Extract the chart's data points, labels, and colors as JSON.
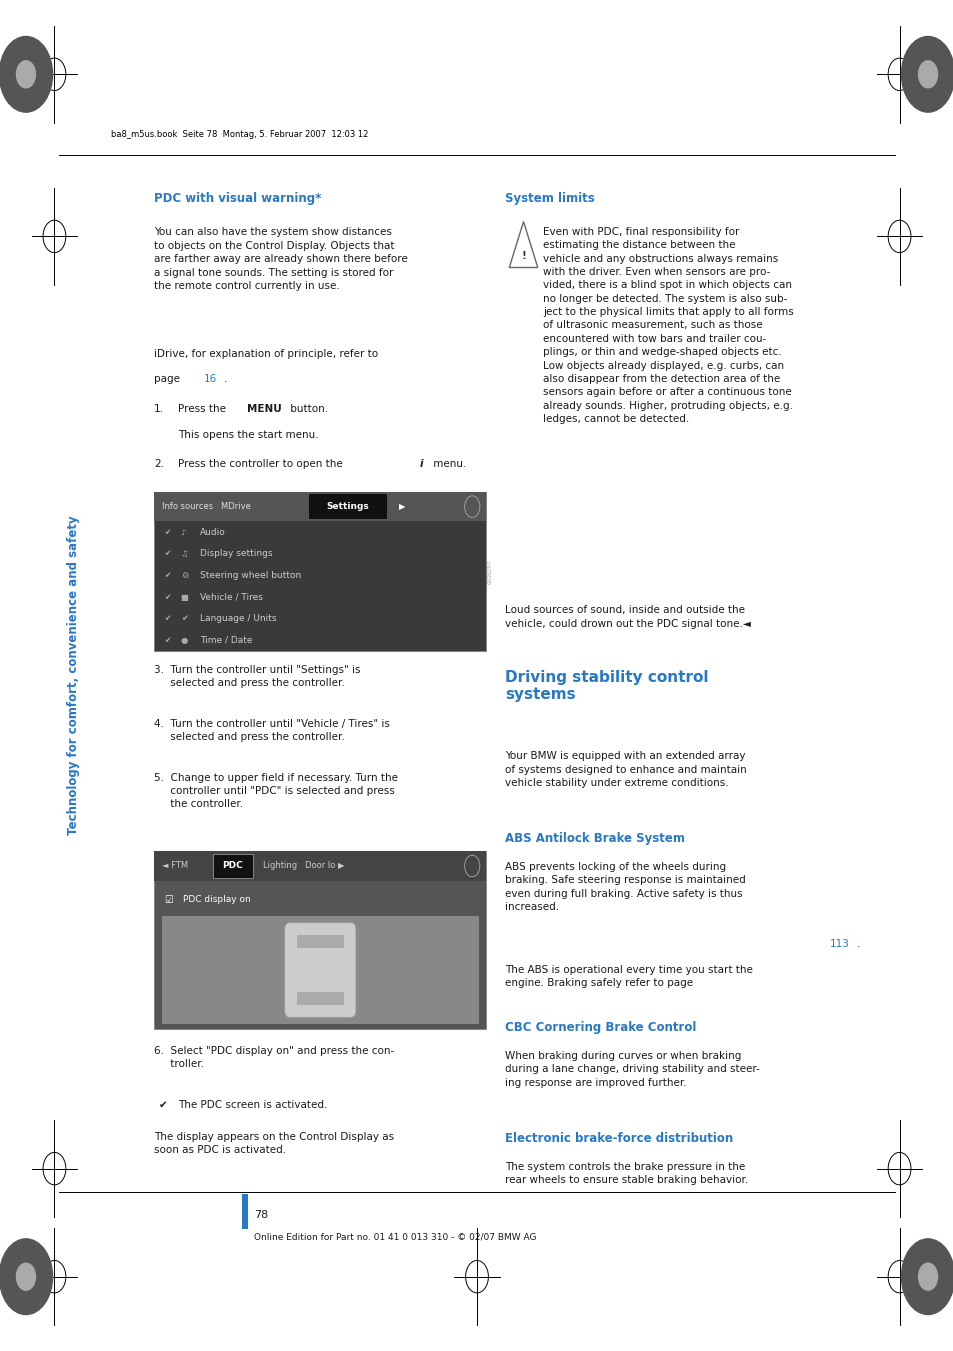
{
  "bg_color": "#ffffff",
  "page_width": 9.54,
  "page_height": 13.51,
  "sidebar_text": "Technology for comfort, convenience and safety",
  "sidebar_color": "#2878c8",
  "header_file": "ba8_m5us.book  Seite 78  Montag, 5. Februar 2007  12:03 12",
  "blue_color": "#2878c8",
  "black_color": "#1a1a1a",
  "section1_title": "PDC with visual warning*",
  "section2_title": "System limits",
  "section3_title": "Driving stability control\nsystems",
  "section4_title": "ABS Antilock Brake System",
  "section5_title": "CBC Cornering Brake Control",
  "section6_title": "Electronic brake-force distribution",
  "page_number": "78",
  "footer": "Online Edition for Part no. 01 41 0 013 310 - © 02/07 BMW AG",
  "footer_bar_color": "#2878c8",
  "menu1_items": [
    "Audio",
    "Display settings",
    "Steering wheel button",
    "Vehicle / Tires",
    "Language / Units",
    "Time / Date"
  ]
}
